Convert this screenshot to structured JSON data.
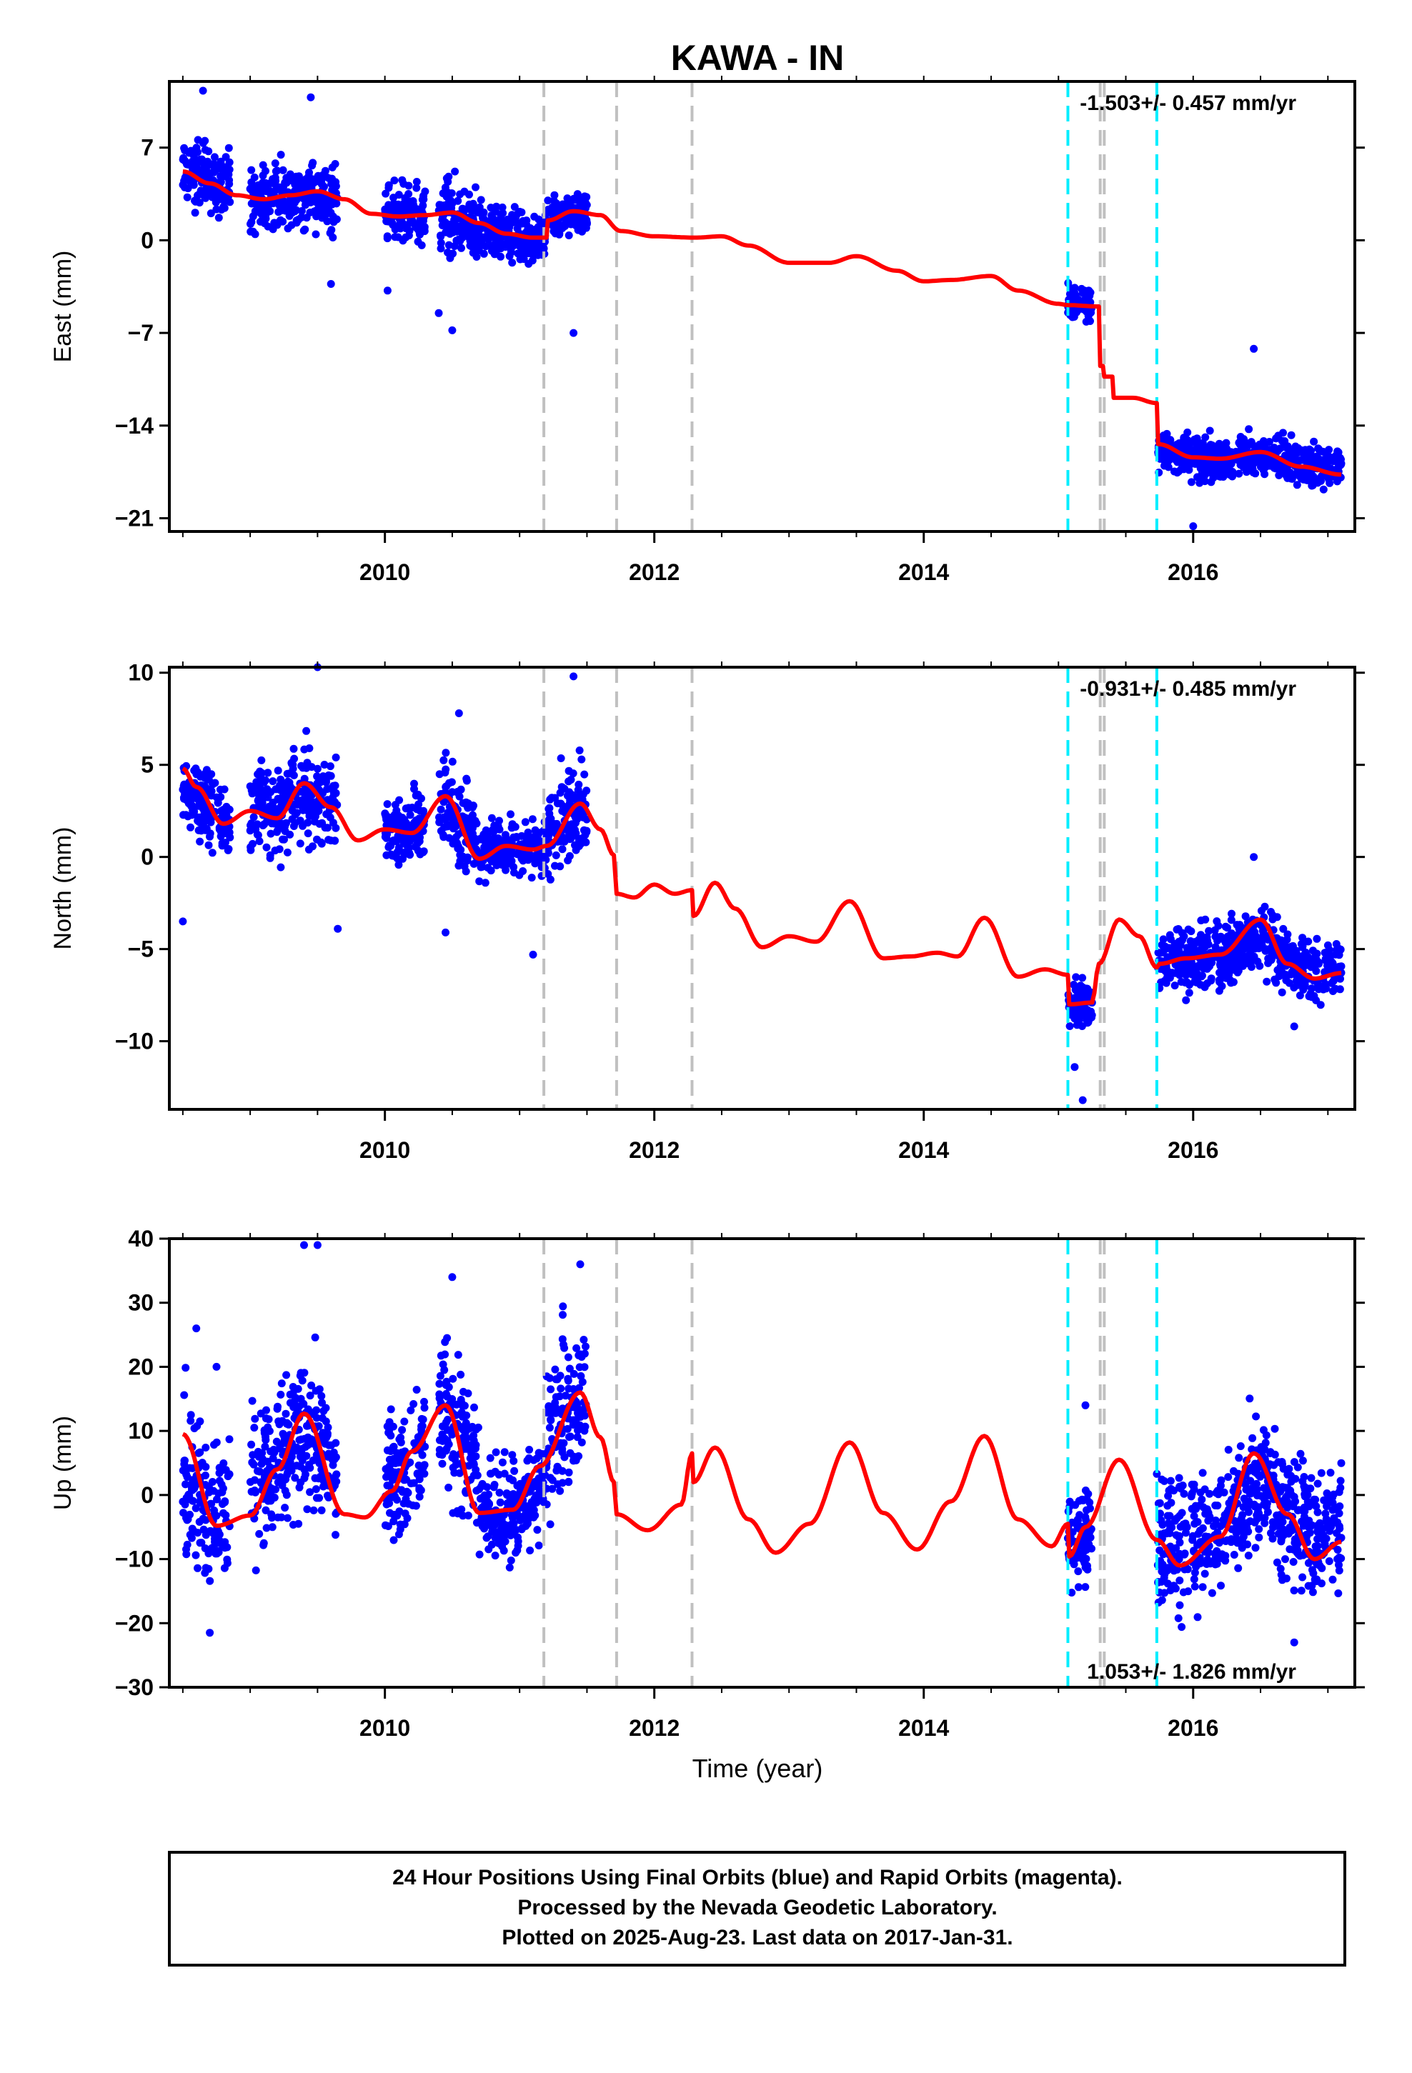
{
  "title": "KAWA - IN",
  "time_axis_label": "Time (year)",
  "colors": {
    "final_orbits": "#0000ff",
    "model": "#ff0000",
    "antenna_change": "#00eeff",
    "equipment_change": "#c0c0c0",
    "frame": "#000000"
  },
  "footer_lines": [
    "24 Hour Positions Using Final Orbits (blue) and Rapid Orbits (magenta).",
    "Processed by the Nevada Geodetic Laboratory.",
    "Plotted on 2025-Aug-23. Last data on 2017-Jan-31."
  ],
  "chart_data": [
    {
      "type": "scatter",
      "component": "East",
      "ylabel": "East (mm)",
      "ylim": [
        -22,
        12
      ],
      "xlim": [
        2008.4,
        2017.2
      ],
      "yticks": [
        7,
        0,
        -7,
        -14,
        -21
      ],
      "ytick_labels": [
        "7",
        "0",
        "−7",
        "−14",
        "−21"
      ],
      "xticks": [
        2010,
        2012,
        2014,
        2016
      ],
      "xtick_labels": [
        "2010",
        "2012",
        "2014",
        "2016"
      ],
      "rate_text": "-1.503+/- 0.457 mm/yr",
      "rate_position": "top-right",
      "data_segments": [
        {
          "start": 2008.5,
          "end": 2008.85,
          "center": 5.0,
          "spread": 2.2
        },
        {
          "start": 2009.0,
          "end": 2009.65,
          "center": 3.2,
          "spread": 2.2
        },
        {
          "start": 2010.0,
          "end": 2010.3,
          "center": 1.8,
          "spread": 2.0
        },
        {
          "start": 2010.4,
          "end": 2010.7,
          "center": 1.0,
          "spread": 2.6
        },
        {
          "start": 2010.7,
          "end": 2011.2,
          "center": 0.3,
          "spread": 1.6
        },
        {
          "start": 2011.2,
          "end": 2011.5,
          "center": 2.0,
          "spread": 1.5
        },
        {
          "start": 2015.07,
          "end": 2015.25,
          "center": -4.5,
          "spread": 1.2
        },
        {
          "start": 2015.73,
          "end": 2017.1,
          "center": -16.5,
          "spread": 1.3
        }
      ],
      "model": {
        "x": [
          2008.5,
          2008.7,
          2008.9,
          2009.1,
          2009.3,
          2009.5,
          2009.7,
          2009.9,
          2010.1,
          2010.3,
          2010.5,
          2010.7,
          2010.9,
          2011.1,
          2011.2,
          2011.21,
          2011.4,
          2011.6,
          2011.75,
          2012.0,
          2012.3,
          2012.5,
          2012.7,
          2013.0,
          2013.3,
          2013.5,
          2013.8,
          2014.0,
          2014.2,
          2014.5,
          2014.7,
          2015.0,
          2015.07,
          2015.3,
          2015.31,
          2015.33,
          2015.34,
          2015.4,
          2015.41,
          2015.55,
          2015.73,
          2015.74,
          2016.0,
          2016.2,
          2016.5,
          2016.8,
          2017.1
        ],
        "y": [
          5.2,
          4.3,
          3.4,
          3.1,
          3.4,
          3.7,
          3.1,
          2.0,
          1.8,
          1.9,
          2.1,
          1.3,
          0.5,
          0.2,
          0.2,
          1.5,
          2.2,
          1.9,
          0.7,
          0.3,
          0.2,
          0.3,
          -0.4,
          -1.7,
          -1.7,
          -1.2,
          -2.3,
          -3.1,
          -3.0,
          -2.7,
          -3.8,
          -4.8,
          -4.9,
          -5.0,
          -9.5,
          -9.5,
          -10.3,
          -10.3,
          -11.9,
          -11.9,
          -12.3,
          -15.4,
          -16.4,
          -16.5,
          -16.0,
          -17.1,
          -17.7
        ]
      },
      "outliers": [
        {
          "x": 2008.65,
          "y": 11.3
        },
        {
          "x": 2009.45,
          "y": 10.8
        },
        {
          "x": 2009.6,
          "y": -3.3
        },
        {
          "x": 2010.4,
          "y": -5.5
        },
        {
          "x": 2010.5,
          "y": -6.8
        },
        {
          "x": 2011.4,
          "y": -7.0
        },
        {
          "x": 2016.45,
          "y": -8.2
        },
        {
          "x": 2016.0,
          "y": -21.6
        },
        {
          "x": 2010.02,
          "y": -3.8
        }
      ]
    },
    {
      "type": "scatter",
      "component": "North",
      "ylabel": "North (mm)",
      "ylim": [
        -13.7,
        10.3
      ],
      "xlim": [
        2008.4,
        2017.2
      ],
      "yticks": [
        10,
        5,
        0,
        -5,
        -10
      ],
      "ytick_labels": [
        "10",
        "5",
        "0",
        "−5",
        "−10"
      ],
      "xticks": [
        2010,
        2012,
        2014,
        2016
      ],
      "xtick_labels": [
        "2010",
        "2012",
        "2014",
        "2016"
      ],
      "rate_text": "-0.931+/- 0.485 mm/yr",
      "rate_position": "top-right",
      "data_segments": [
        {
          "start": 2008.5,
          "end": 2008.85,
          "center": 2.3,
          "spread": 1.8
        },
        {
          "start": 2009.0,
          "end": 2009.65,
          "center": 3.0,
          "spread": 2.2
        },
        {
          "start": 2010.0,
          "end": 2010.3,
          "center": 1.5,
          "spread": 1.6
        },
        {
          "start": 2010.4,
          "end": 2010.7,
          "center": 2.5,
          "spread": 2.2
        },
        {
          "start": 2010.7,
          "end": 2011.2,
          "center": 0.5,
          "spread": 1.3
        },
        {
          "start": 2011.2,
          "end": 2011.5,
          "center": 2.0,
          "spread": 2.2
        },
        {
          "start": 2015.07,
          "end": 2015.25,
          "center": -8.0,
          "spread": 1.2
        },
        {
          "start": 2015.73,
          "end": 2017.1,
          "center": -5.5,
          "spread": 1.5
        }
      ],
      "model": {
        "x": [
          2008.5,
          2008.6,
          2008.8,
          2009.0,
          2009.2,
          2009.4,
          2009.6,
          2009.8,
          2010.0,
          2010.2,
          2010.45,
          2010.7,
          2010.9,
          2011.1,
          2011.2,
          2011.45,
          2011.6,
          2011.7,
          2011.72,
          2011.85,
          2012.0,
          2012.15,
          2012.28,
          2012.29,
          2012.45,
          2012.6,
          2012.8,
          2013.0,
          2013.2,
          2013.45,
          2013.7,
          2013.9,
          2014.1,
          2014.25,
          2014.45,
          2014.7,
          2014.9,
          2015.07,
          2015.08,
          2015.25,
          2015.3,
          2015.45,
          2015.6,
          2015.73,
          2015.75,
          2015.95,
          2016.2,
          2016.5,
          2016.7,
          2016.9,
          2017.1
        ],
        "y": [
          4.8,
          3.8,
          1.8,
          2.5,
          2.1,
          4.0,
          2.7,
          0.9,
          1.5,
          1.3,
          3.3,
          -0.1,
          0.6,
          0.4,
          0.6,
          2.9,
          1.5,
          0.1,
          -2.0,
          -2.2,
          -1.5,
          -2.0,
          -1.8,
          -3.2,
          -1.4,
          -2.8,
          -4.9,
          -4.3,
          -4.6,
          -2.4,
          -5.5,
          -5.4,
          -5.2,
          -5.4,
          -3.3,
          -6.5,
          -6.1,
          -6.4,
          -8.0,
          -7.9,
          -5.8,
          -3.4,
          -4.3,
          -6.0,
          -5.8,
          -5.5,
          -5.3,
          -3.4,
          -5.8,
          -6.6,
          -6.3
        ]
      },
      "outliers": [
        {
          "x": 2008.5,
          "y": -3.5
        },
        {
          "x": 2009.5,
          "y": 10.3
        },
        {
          "x": 2009.65,
          "y": -3.9
        },
        {
          "x": 2010.45,
          "y": -4.1
        },
        {
          "x": 2010.55,
          "y": 7.8
        },
        {
          "x": 2011.4,
          "y": 9.8
        },
        {
          "x": 2011.1,
          "y": -5.3
        },
        {
          "x": 2015.18,
          "y": -13.2
        },
        {
          "x": 2015.12,
          "y": -11.4
        },
        {
          "x": 2016.45,
          "y": 0.0
        },
        {
          "x": 2016.75,
          "y": -9.2
        }
      ]
    },
    {
      "type": "scatter",
      "component": "Up",
      "ylabel": "Up (mm)",
      "ylim": [
        -30,
        40
      ],
      "xlim": [
        2008.4,
        2017.2
      ],
      "yticks": [
        40,
        30,
        20,
        10,
        0,
        -10,
        -20,
        -30
      ],
      "ytick_labels": [
        "40",
        "30",
        "20",
        "10",
        "0",
        "−10",
        "−20",
        "−30"
      ],
      "xticks": [
        2010,
        2012,
        2014,
        2016
      ],
      "xtick_labels": [
        "2010",
        "2012",
        "2014",
        "2016"
      ],
      "rate_text": "1.053+/- 1.826 mm/yr",
      "rate_position": "bottom-right",
      "data_segments": [
        {
          "start": 2008.5,
          "end": 2008.85,
          "center": -3.0,
          "spread": 10.0
        },
        {
          "start": 2009.0,
          "end": 2009.65,
          "center": 7.0,
          "spread": 10.0
        },
        {
          "start": 2010.0,
          "end": 2010.3,
          "center": 4.0,
          "spread": 9.0
        },
        {
          "start": 2010.4,
          "end": 2010.7,
          "center": 12.0,
          "spread": 10.0
        },
        {
          "start": 2010.7,
          "end": 2011.2,
          "center": -3.0,
          "spread": 7.0
        },
        {
          "start": 2011.2,
          "end": 2011.5,
          "center": 14.0,
          "spread": 11.0
        },
        {
          "start": 2015.07,
          "end": 2015.25,
          "center": -5.0,
          "spread": 7.0
        },
        {
          "start": 2015.73,
          "end": 2017.1,
          "center": -3.0,
          "spread": 9.0
        }
      ],
      "model": {
        "x": [
          2008.5,
          2008.75,
          2009.0,
          2009.2,
          2009.4,
          2009.7,
          2009.85,
          2010.05,
          2010.2,
          2010.45,
          2010.7,
          2010.95,
          2011.15,
          2011.45,
          2011.6,
          2011.7,
          2011.72,
          2011.95,
          2012.2,
          2012.28,
          2012.29,
          2012.45,
          2012.7,
          2012.9,
          2013.15,
          2013.45,
          2013.7,
          2013.95,
          2014.2,
          2014.45,
          2014.7,
          2014.95,
          2015.07,
          2015.08,
          2015.2,
          2015.45,
          2015.73,
          2015.9,
          2016.2,
          2016.45,
          2016.7,
          2016.9,
          2017.1
        ],
        "y": [
          9.5,
          -4.8,
          -3.2,
          4.0,
          12.7,
          -3.0,
          -3.5,
          0.6,
          6.8,
          14.0,
          -2.8,
          -2.3,
          4.5,
          16.0,
          9.0,
          2.0,
          -3.0,
          -5.5,
          -1.5,
          6.5,
          2.0,
          7.4,
          -3.8,
          -9.0,
          -4.5,
          8.2,
          -2.8,
          -8.5,
          -1.0,
          9.2,
          -3.8,
          -8.0,
          -4.5,
          -9.6,
          -5.0,
          5.5,
          -7.0,
          -11.0,
          -6.5,
          6.5,
          -3.0,
          -10.0,
          -7.3
        ]
      },
      "outliers": [
        {
          "x": 2009.4,
          "y": 39.0
        },
        {
          "x": 2009.5,
          "y": 39.0
        },
        {
          "x": 2010.5,
          "y": 34.0
        },
        {
          "x": 2011.45,
          "y": 36.0
        },
        {
          "x": 2008.6,
          "y": 26.0
        },
        {
          "x": 2008.75,
          "y": 20.0
        },
        {
          "x": 2008.7,
          "y": -21.5
        },
        {
          "x": 2015.2,
          "y": 14.0
        },
        {
          "x": 2016.75,
          "y": -23.0
        }
      ]
    }
  ],
  "event_lines": [
    {
      "x": 2011.18,
      "kind": "equipment_change"
    },
    {
      "x": 2011.72,
      "kind": "equipment_change"
    },
    {
      "x": 2012.28,
      "kind": "equipment_change"
    },
    {
      "x": 2015.07,
      "kind": "antenna_change"
    },
    {
      "x": 2015.31,
      "kind": "equipment_change"
    },
    {
      "x": 2015.34,
      "kind": "equipment_change"
    },
    {
      "x": 2015.73,
      "kind": "antenna_change"
    }
  ]
}
